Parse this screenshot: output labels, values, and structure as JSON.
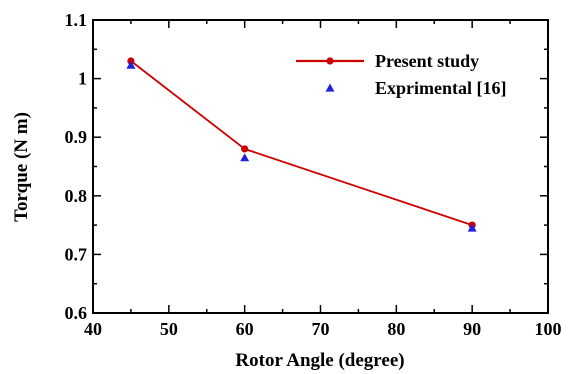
{
  "chart_data": {
    "type": "line",
    "xlabel": "Rotor Angle (degree)",
    "ylabel": "Torque (N m)",
    "xlim": [
      40,
      100
    ],
    "ylim": [
      0.6,
      1.1
    ],
    "xticks": [
      "40",
      "50",
      "60",
      "70",
      "80",
      "90",
      "100"
    ],
    "yticks": [
      "0.6",
      "0.7",
      "0.8",
      "0.9",
      "1",
      "1.1"
    ],
    "grid": false,
    "legend_position": "top-right",
    "series": [
      {
        "name": "Present study",
        "style": "line-circle",
        "color": "#cc0000",
        "x": [
          45,
          60,
          90
        ],
        "y": [
          1.03,
          0.88,
          0.75
        ]
      },
      {
        "name": "Exprimental [16]",
        "style": "triangle",
        "color": "#2222dd",
        "x": [
          45,
          60,
          90
        ],
        "y": [
          1.023,
          0.865,
          0.745
        ]
      }
    ]
  }
}
